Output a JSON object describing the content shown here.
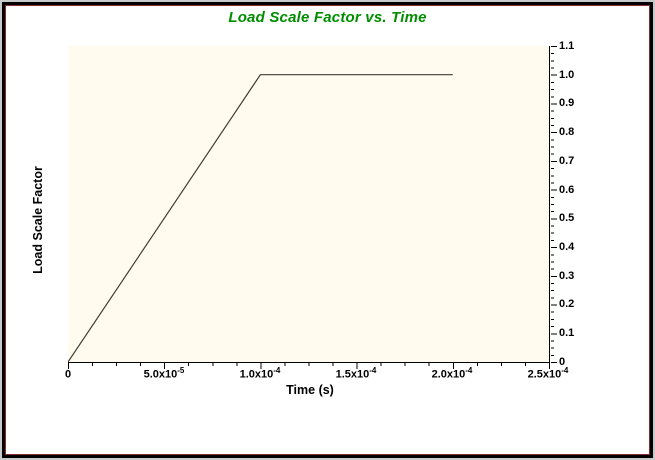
{
  "title": {
    "text": "Load Scale Factor vs. Time",
    "color": "#008d00"
  },
  "axes": {
    "x": {
      "label": "Time (s)",
      "ticks": [
        {
          "base": "0",
          "exp": ""
        },
        {
          "base": "5.0x10",
          "exp": "-5"
        },
        {
          "base": "1.0x10",
          "exp": "-4"
        },
        {
          "base": "1.5x10",
          "exp": "-4"
        },
        {
          "base": "2.0x10",
          "exp": "-4"
        },
        {
          "base": "2.5x10",
          "exp": "-4"
        }
      ]
    },
    "y": {
      "label": "Load Scale Factor",
      "ticks": [
        "1.1",
        "1.0",
        "0.9",
        "0.8",
        "0.7",
        "0.6",
        "0.5",
        "0.4",
        "0.3",
        "0.2",
        "0.1",
        "0"
      ]
    }
  },
  "colors": {
    "plot_background": "#fffbee",
    "series_line": "#3f3f37",
    "frame_black": "#000000",
    "frame_red": "#8b2a2a",
    "title_green": "#008d00"
  },
  "chart_data": {
    "type": "line",
    "title": "Load Scale Factor vs. Time",
    "xlabel": "Time (s)",
    "ylabel": "Load Scale Factor",
    "xlim": [
      0,
      0.00025
    ],
    "ylim": [
      0,
      1.1
    ],
    "series": [
      {
        "name": "Load Scale Factor",
        "x": [
          0,
          0.0001,
          0.0002
        ],
        "y": [
          0,
          1.0,
          1.0
        ]
      }
    ],
    "x_tick_labels": [
      "0",
      "5.0x10^-5",
      "1.0x10^-4",
      "1.5x10^-4",
      "2.0x10^-4",
      "2.5x10^-4"
    ],
    "y_tick_values": [
      0,
      0.1,
      0.2,
      0.3,
      0.4,
      0.5,
      0.6,
      0.7,
      0.8,
      0.9,
      1.0,
      1.1
    ],
    "x_minor_tick_step": 1.25e-05,
    "y_minor_tick_step": 0.025,
    "grid": false,
    "legend": false,
    "line_color": "#3f3f37",
    "plot_bg": "#fffbee"
  }
}
